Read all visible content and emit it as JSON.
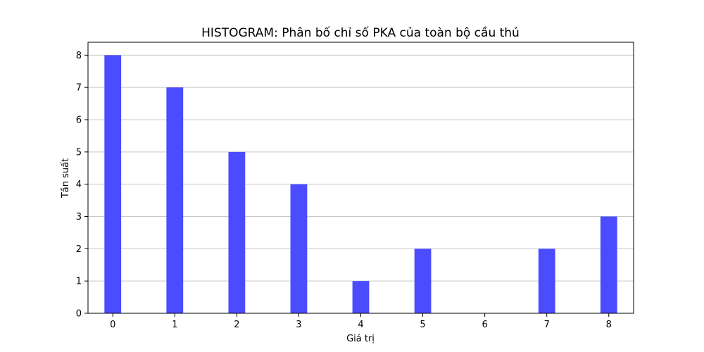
{
  "chart_data": {
    "type": "bar",
    "title": "HISTOGRAM: Phân bố chỉ số PKA của toàn bộ cầu thủ",
    "xlabel": "Giá trị",
    "ylabel": "Tần suất",
    "bins": [
      {
        "x": 0,
        "count": 8
      },
      {
        "x": 1,
        "count": 7
      },
      {
        "x": 2,
        "count": 5
      },
      {
        "x": 3,
        "count": 4
      },
      {
        "x": 4,
        "count": 1
      },
      {
        "x": 5,
        "count": 2
      },
      {
        "x": 7,
        "count": 2
      },
      {
        "x": 8,
        "count": 3
      }
    ],
    "xticks": [
      0,
      1,
      2,
      3,
      4,
      5,
      6,
      7,
      8
    ],
    "yticks": [
      0,
      1,
      2,
      3,
      4,
      5,
      6,
      7,
      8
    ],
    "xlim": [
      -0.4,
      8.4
    ],
    "ylim": [
      0,
      8.4
    ],
    "bar_width": 0.27,
    "grid": "y",
    "bar_color": "#4b4bff",
    "grid_color": "#c8c8c8"
  }
}
